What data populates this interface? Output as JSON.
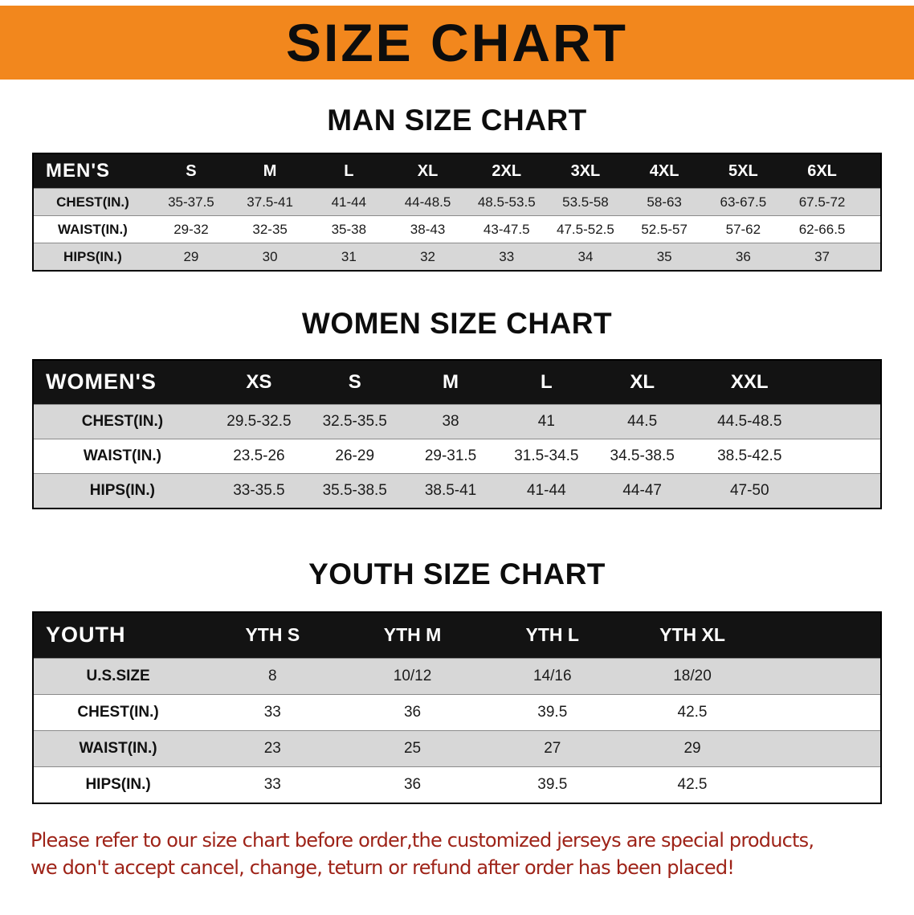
{
  "banner": {
    "title": "SIZE CHART",
    "bg_color": "#F2871D"
  },
  "sections": [
    {
      "heading": "MAN SIZE CHART",
      "table": {
        "corner": "MEN'S",
        "columns": [
          "S",
          "M",
          "L",
          "XL",
          "2XL",
          "3XL",
          "4XL",
          "5XL",
          "6XL"
        ],
        "rows": [
          {
            "label": "CHEST(IN.)",
            "values": [
              "35-37.5",
              "37.5-41",
              "41-44",
              "44-48.5",
              "48.5-53.5",
              "53.5-58",
              "58-63",
              "63-67.5",
              "67.5-72"
            ]
          },
          {
            "label": "WAIST(IN.)",
            "values": [
              "29-32",
              "32-35",
              "35-38",
              "38-43",
              "43-47.5",
              "47.5-52.5",
              "52.5-57",
              "57-62",
              "62-66.5"
            ]
          },
          {
            "label": "HIPS(IN.)",
            "values": [
              "29",
              "30",
              "31",
              "32",
              "33",
              "34",
              "35",
              "36",
              "37"
            ]
          }
        ]
      }
    },
    {
      "heading": "WOMEN SIZE CHART",
      "table": {
        "corner": "WOMEN'S",
        "columns": [
          "XS",
          "S",
          "M",
          "L",
          "XL",
          "XXL"
        ],
        "rows": [
          {
            "label": "CHEST(IN.)",
            "values": [
              "29.5-32.5",
              "32.5-35.5",
              "38",
              "41",
              "44.5",
              "44.5-48.5"
            ]
          },
          {
            "label": "WAIST(IN.)",
            "values": [
              "23.5-26",
              "26-29",
              "29-31.5",
              "31.5-34.5",
              "34.5-38.5",
              "38.5-42.5"
            ]
          },
          {
            "label": "HIPS(IN.)",
            "values": [
              "33-35.5",
              "35.5-38.5",
              "38.5-41",
              "41-44",
              "44-47",
              "47-50"
            ]
          }
        ]
      }
    },
    {
      "heading": "YOUTH SIZE CHART",
      "table": {
        "corner": "YOUTH",
        "columns": [
          "YTH S",
          "YTH M",
          "YTH L",
          "YTH XL"
        ],
        "rows": [
          {
            "label": "U.S.SIZE",
            "values": [
              "8",
              "10/12",
              "14/16",
              "18/20"
            ]
          },
          {
            "label": "CHEST(IN.)",
            "values": [
              "33",
              "36",
              "39.5",
              "42.5"
            ]
          },
          {
            "label": "WAIST(IN.)",
            "values": [
              "23",
              "25",
              "27",
              "29"
            ]
          },
          {
            "label": "HIPS(IN.)",
            "values": [
              "33",
              "36",
              "39.5",
              "42.5"
            ]
          }
        ]
      }
    }
  ],
  "footer": {
    "color": "#9E2318",
    "lines": [
      "Please refer to our size chart before order,the customized jerseys are special products,",
      "we don't accept cancel, change, teturn or refund after order has been placed!"
    ]
  }
}
